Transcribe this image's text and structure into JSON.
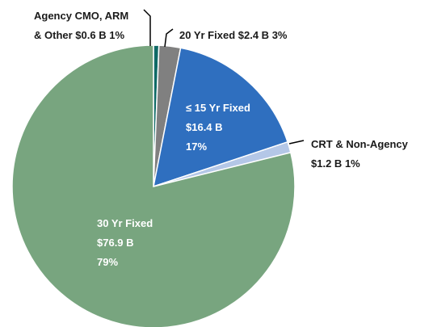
{
  "chart_data": {
    "type": "pie",
    "categories": [
      "Agency CMO, ARM & Other",
      "20 Yr Fixed",
      "≤ 15 Yr Fixed",
      "CRT & Non-Agency",
      "30 Yr Fixed"
    ],
    "values": [
      0.6,
      2.4,
      16.4,
      1.2,
      76.9
    ],
    "value_labels": [
      "$0.6 B",
      "$2.4 B",
      "$16.4 B",
      "$1.2 B",
      "$76.9 B"
    ],
    "percent_labels": [
      "1%",
      "3%",
      "17%",
      "1%",
      "79%"
    ],
    "colors": [
      "#0f6a66",
      "#808080",
      "#2f6fbf",
      "#b4c7e7",
      "#78a57f"
    ]
  }
}
